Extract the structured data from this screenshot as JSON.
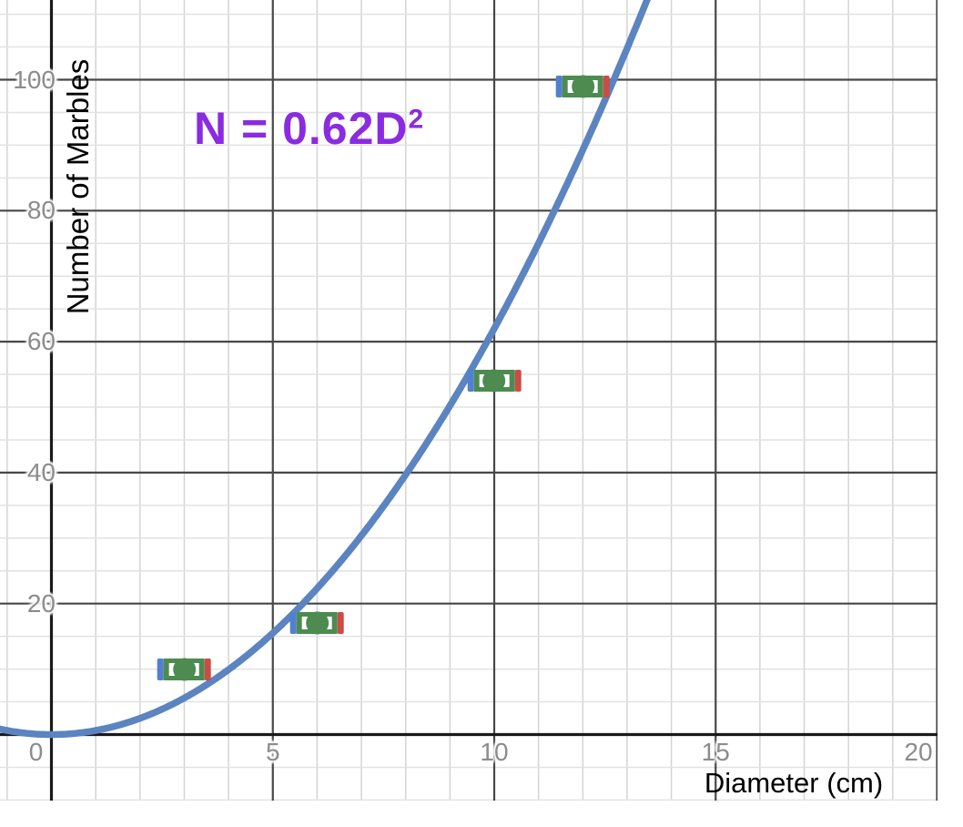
{
  "chart_data": {
    "type": "scatter",
    "title": "",
    "xlabel": "Diameter (cm)",
    "ylabel": "Number of Marbles",
    "equation_label": "N = 0.62D²",
    "equation_base": "N = 0.62D",
    "equation_superscript": "2",
    "points": [
      {
        "x": 3,
        "y": 10
      },
      {
        "x": 6,
        "y": 17
      },
      {
        "x": 10,
        "y": 54
      },
      {
        "x": 12,
        "y": 99
      }
    ],
    "x_error_half_width": 0.5,
    "curve": {
      "model": "N = c*D^exponent",
      "coefficient": 0.62,
      "exponent": 2
    },
    "x_ticks": [
      "0",
      "5",
      "10",
      "15",
      "20"
    ],
    "x_tick_values": [
      0,
      5,
      10,
      15,
      20
    ],
    "y_ticks": [
      "20",
      "40",
      "60",
      "80",
      "100"
    ],
    "y_tick_values": [
      20,
      40,
      60,
      80,
      100
    ],
    "xlim": [
      -1.16,
      20.02
    ],
    "ylim": [
      -10.1,
      112.2
    ],
    "grid": {
      "x_minor_step": 1,
      "x_major_step": 5,
      "y_minor_step": 5,
      "y_major_step": 20,
      "visible": true
    },
    "legend": null,
    "colors": {
      "curve": "#5b84c0",
      "marker_green": "#4d8b50",
      "error_cap_left": "#5180d0",
      "error_cap_right": "#cd4b45",
      "equation": "#8a2be2",
      "axis": "#1a1a1a",
      "grid_major": "#474747",
      "grid_minor_vertical": "#d4d4d4",
      "grid_minor_horizontal": "#e2e2e2",
      "tick_label": "#8c8c8c",
      "axis_title": "#000000",
      "background": "#ffffff"
    }
  }
}
